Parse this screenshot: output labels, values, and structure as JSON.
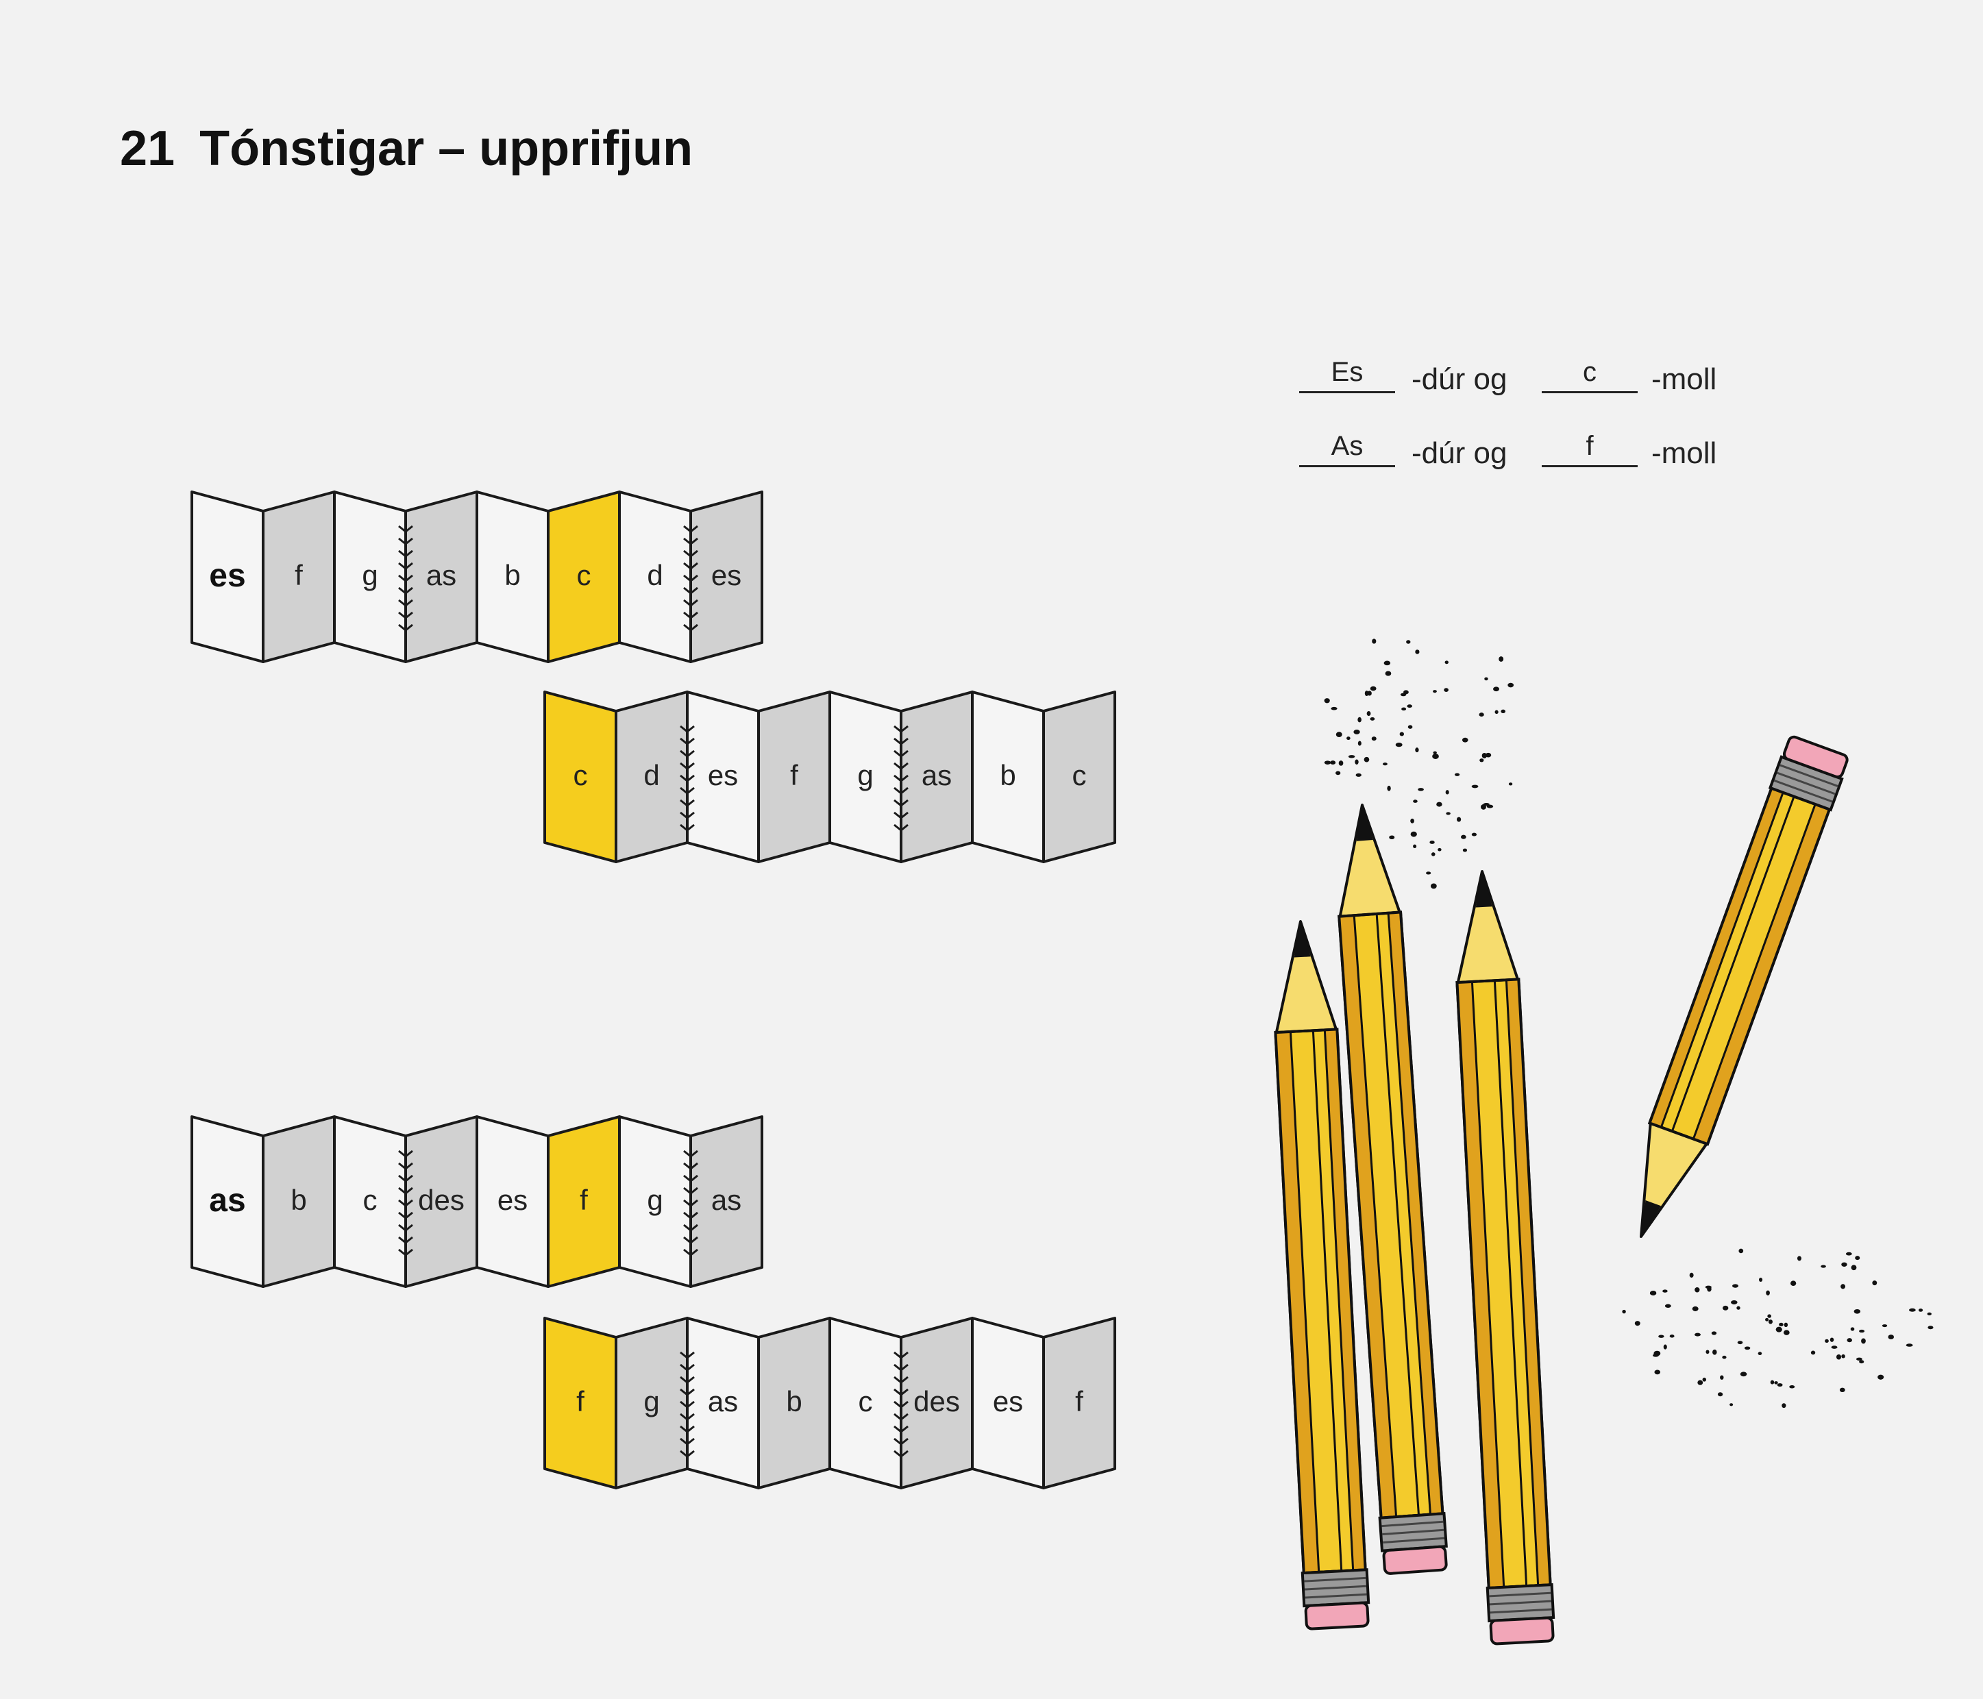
{
  "page": {
    "number": "21",
    "title": "Tónstigar – upprifjun"
  },
  "answers": [
    {
      "major": "Es",
      "major_suffix": "-dúr og",
      "minor": "c",
      "minor_suffix": "-moll"
    },
    {
      "major": "As",
      "major_suffix": "-dúr og",
      "minor": "f",
      "minor_suffix": "-moll"
    }
  ],
  "strips": [
    {
      "id": "es-major",
      "notes": [
        "es",
        "f",
        "g",
        "as",
        "b",
        "c",
        "d",
        "es"
      ],
      "first_bold": true,
      "highlight_index": 5
    },
    {
      "id": "c-minor",
      "notes": [
        "c",
        "d",
        "es",
        "f",
        "g",
        "as",
        "b",
        "c"
      ],
      "first_bold": false,
      "highlight_index": 0
    },
    {
      "id": "as-major",
      "notes": [
        "as",
        "b",
        "c",
        "des",
        "es",
        "f",
        "g",
        "as"
      ],
      "first_bold": true,
      "highlight_index": 5
    },
    {
      "id": "f-minor",
      "notes": [
        "f",
        "g",
        "as",
        "b",
        "c",
        "des",
        "es",
        "f"
      ],
      "first_bold": false,
      "highlight_index": 0
    }
  ],
  "colors": {
    "background": "#f2f2f2",
    "panel_light": "#f5f5f5",
    "panel_gray": "#d1d1d1",
    "highlight": "#f5cd1e",
    "pencil_body": "#f3cb2c",
    "pencil_dark": "#e0a21e",
    "pencil_wood": "#f6dc6e",
    "ferrule": "#9a9a9a",
    "eraser": "#f2a6b8"
  },
  "decorations": {
    "pencils": [
      "pencil-icon",
      "pencil-icon",
      "pencil-icon",
      "pencil-icon"
    ],
    "dots": "graphite-dots"
  }
}
